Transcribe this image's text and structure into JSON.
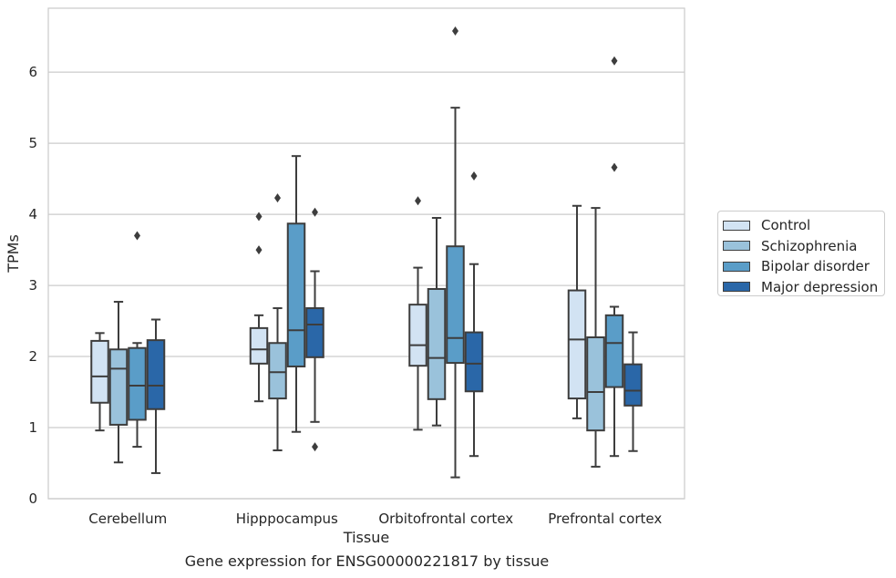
{
  "chart_data": {
    "type": "box",
    "ylabel": "TPMs",
    "xlabel": "Tissue",
    "caption": "Gene expression for ENSG00000221817 by tissue",
    "ylim": [
      0,
      6.9
    ],
    "yticks": [
      0,
      1,
      2,
      3,
      4,
      5,
      6
    ],
    "grid": true,
    "legend_position": "right",
    "categories": [
      "Cerebellum",
      "Hipppocampus",
      "Orbitofrontal cortex",
      "Prefrontal cortex"
    ],
    "series": [
      {
        "name": "Control",
        "color": "#d2e3f3",
        "boxes": [
          {
            "whislo": 0.96,
            "q1": 1.35,
            "med": 1.72,
            "q3": 2.22,
            "whishi": 2.33,
            "fliers": []
          },
          {
            "whislo": 1.37,
            "q1": 1.9,
            "med": 2.1,
            "q3": 2.4,
            "whishi": 2.58,
            "fliers": [
              3.5,
              3.97
            ]
          },
          {
            "whislo": 0.97,
            "q1": 1.87,
            "med": 2.16,
            "q3": 2.73,
            "whishi": 3.25,
            "fliers": [
              4.19
            ]
          },
          {
            "whislo": 1.13,
            "q1": 1.41,
            "med": 2.24,
            "q3": 2.93,
            "whishi": 4.12,
            "fliers": []
          }
        ]
      },
      {
        "name": "Schizophrenia",
        "color": "#9ac2db",
        "boxes": [
          {
            "whislo": 0.51,
            "q1": 1.04,
            "med": 1.83,
            "q3": 2.1,
            "whishi": 2.77,
            "fliers": []
          },
          {
            "whislo": 0.68,
            "q1": 1.41,
            "med": 1.78,
            "q3": 2.19,
            "whishi": 2.68,
            "fliers": [
              4.23
            ]
          },
          {
            "whislo": 1.03,
            "q1": 1.4,
            "med": 1.98,
            "q3": 2.95,
            "whishi": 3.95,
            "fliers": []
          },
          {
            "whislo": 0.45,
            "q1": 0.96,
            "med": 1.5,
            "q3": 2.27,
            "whishi": 4.09,
            "fliers": []
          }
        ]
      },
      {
        "name": "Bipolar disorder",
        "color": "#5a9dc8",
        "boxes": [
          {
            "whislo": 0.73,
            "q1": 1.11,
            "med": 1.59,
            "q3": 2.12,
            "whishi": 2.19,
            "fliers": [
              3.7
            ]
          },
          {
            "whislo": 0.94,
            "q1": 1.86,
            "med": 2.37,
            "q3": 3.87,
            "whishi": 4.82,
            "fliers": []
          },
          {
            "whislo": 0.3,
            "q1": 1.91,
            "med": 2.26,
            "q3": 3.55,
            "whishi": 5.5,
            "fliers": [
              6.58
            ]
          },
          {
            "whislo": 0.6,
            "q1": 1.57,
            "med": 2.19,
            "q3": 2.58,
            "whishi": 2.7,
            "fliers": [
              4.66,
              6.16
            ]
          }
        ]
      },
      {
        "name": "Major depression",
        "color": "#2a67a8",
        "boxes": [
          {
            "whislo": 0.36,
            "q1": 1.26,
            "med": 1.59,
            "q3": 2.23,
            "whishi": 2.52,
            "fliers": []
          },
          {
            "whislo": 1.08,
            "q1": 1.99,
            "med": 2.45,
            "q3": 2.68,
            "whishi": 3.2,
            "fliers": [
              0.73,
              4.03
            ]
          },
          {
            "whislo": 0.6,
            "q1": 1.51,
            "med": 1.9,
            "q3": 2.34,
            "whishi": 3.3,
            "fliers": [
              4.54
            ]
          },
          {
            "whislo": 0.67,
            "q1": 1.31,
            "med": 1.52,
            "q3": 1.89,
            "whishi": 2.34,
            "fliers": []
          }
        ]
      }
    ]
  }
}
